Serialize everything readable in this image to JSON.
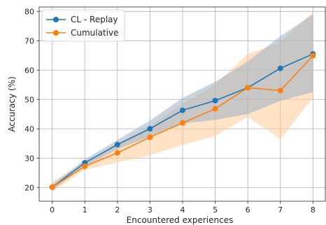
{
  "chart_data": {
    "type": "line",
    "title": "",
    "xlabel": "Encountered experiences",
    "ylabel": "Accuracy (%)",
    "x": [
      0,
      1,
      2,
      3,
      4,
      5,
      6,
      7,
      8
    ],
    "xlim": [
      -0.4,
      8.4
    ],
    "ylim": [
      15.3,
      81.5
    ],
    "xticks": [
      0,
      1,
      2,
      3,
      4,
      5,
      6,
      7,
      8
    ],
    "yticks": [
      20,
      30,
      40,
      50,
      60,
      70,
      80
    ],
    "grid": true,
    "legend": "top-left",
    "series": [
      {
        "name": "CL - Replay",
        "color": "#1f77b4",
        "band_color": "#9ab0c4",
        "values": [
          20.1,
          28.4,
          34.6,
          40.0,
          46.3,
          49.6,
          54.0,
          60.6,
          65.5
        ],
        "band_upper": [
          21.0,
          29.5,
          36.2,
          42.8,
          50.5,
          56.0,
          63.0,
          71.5,
          79.0
        ],
        "band_lower": [
          19.0,
          27.2,
          33.0,
          37.3,
          41.8,
          43.0,
          45.0,
          49.5,
          52.5
        ]
      },
      {
        "name": "Cumulative",
        "color": "#ff7f0e",
        "band_color": "#ffcc99",
        "values": [
          20.1,
          27.2,
          31.8,
          37.1,
          42.0,
          46.8,
          54.0,
          53.0,
          64.9
        ],
        "band_upper": [
          22.0,
          28.5,
          35.0,
          41.0,
          48.5,
          55.0,
          65.5,
          69.5,
          79.8
        ],
        "band_lower": [
          18.5,
          26.0,
          28.5,
          31.0,
          34.5,
          37.5,
          44.0,
          36.5,
          50.5
        ]
      }
    ]
  }
}
